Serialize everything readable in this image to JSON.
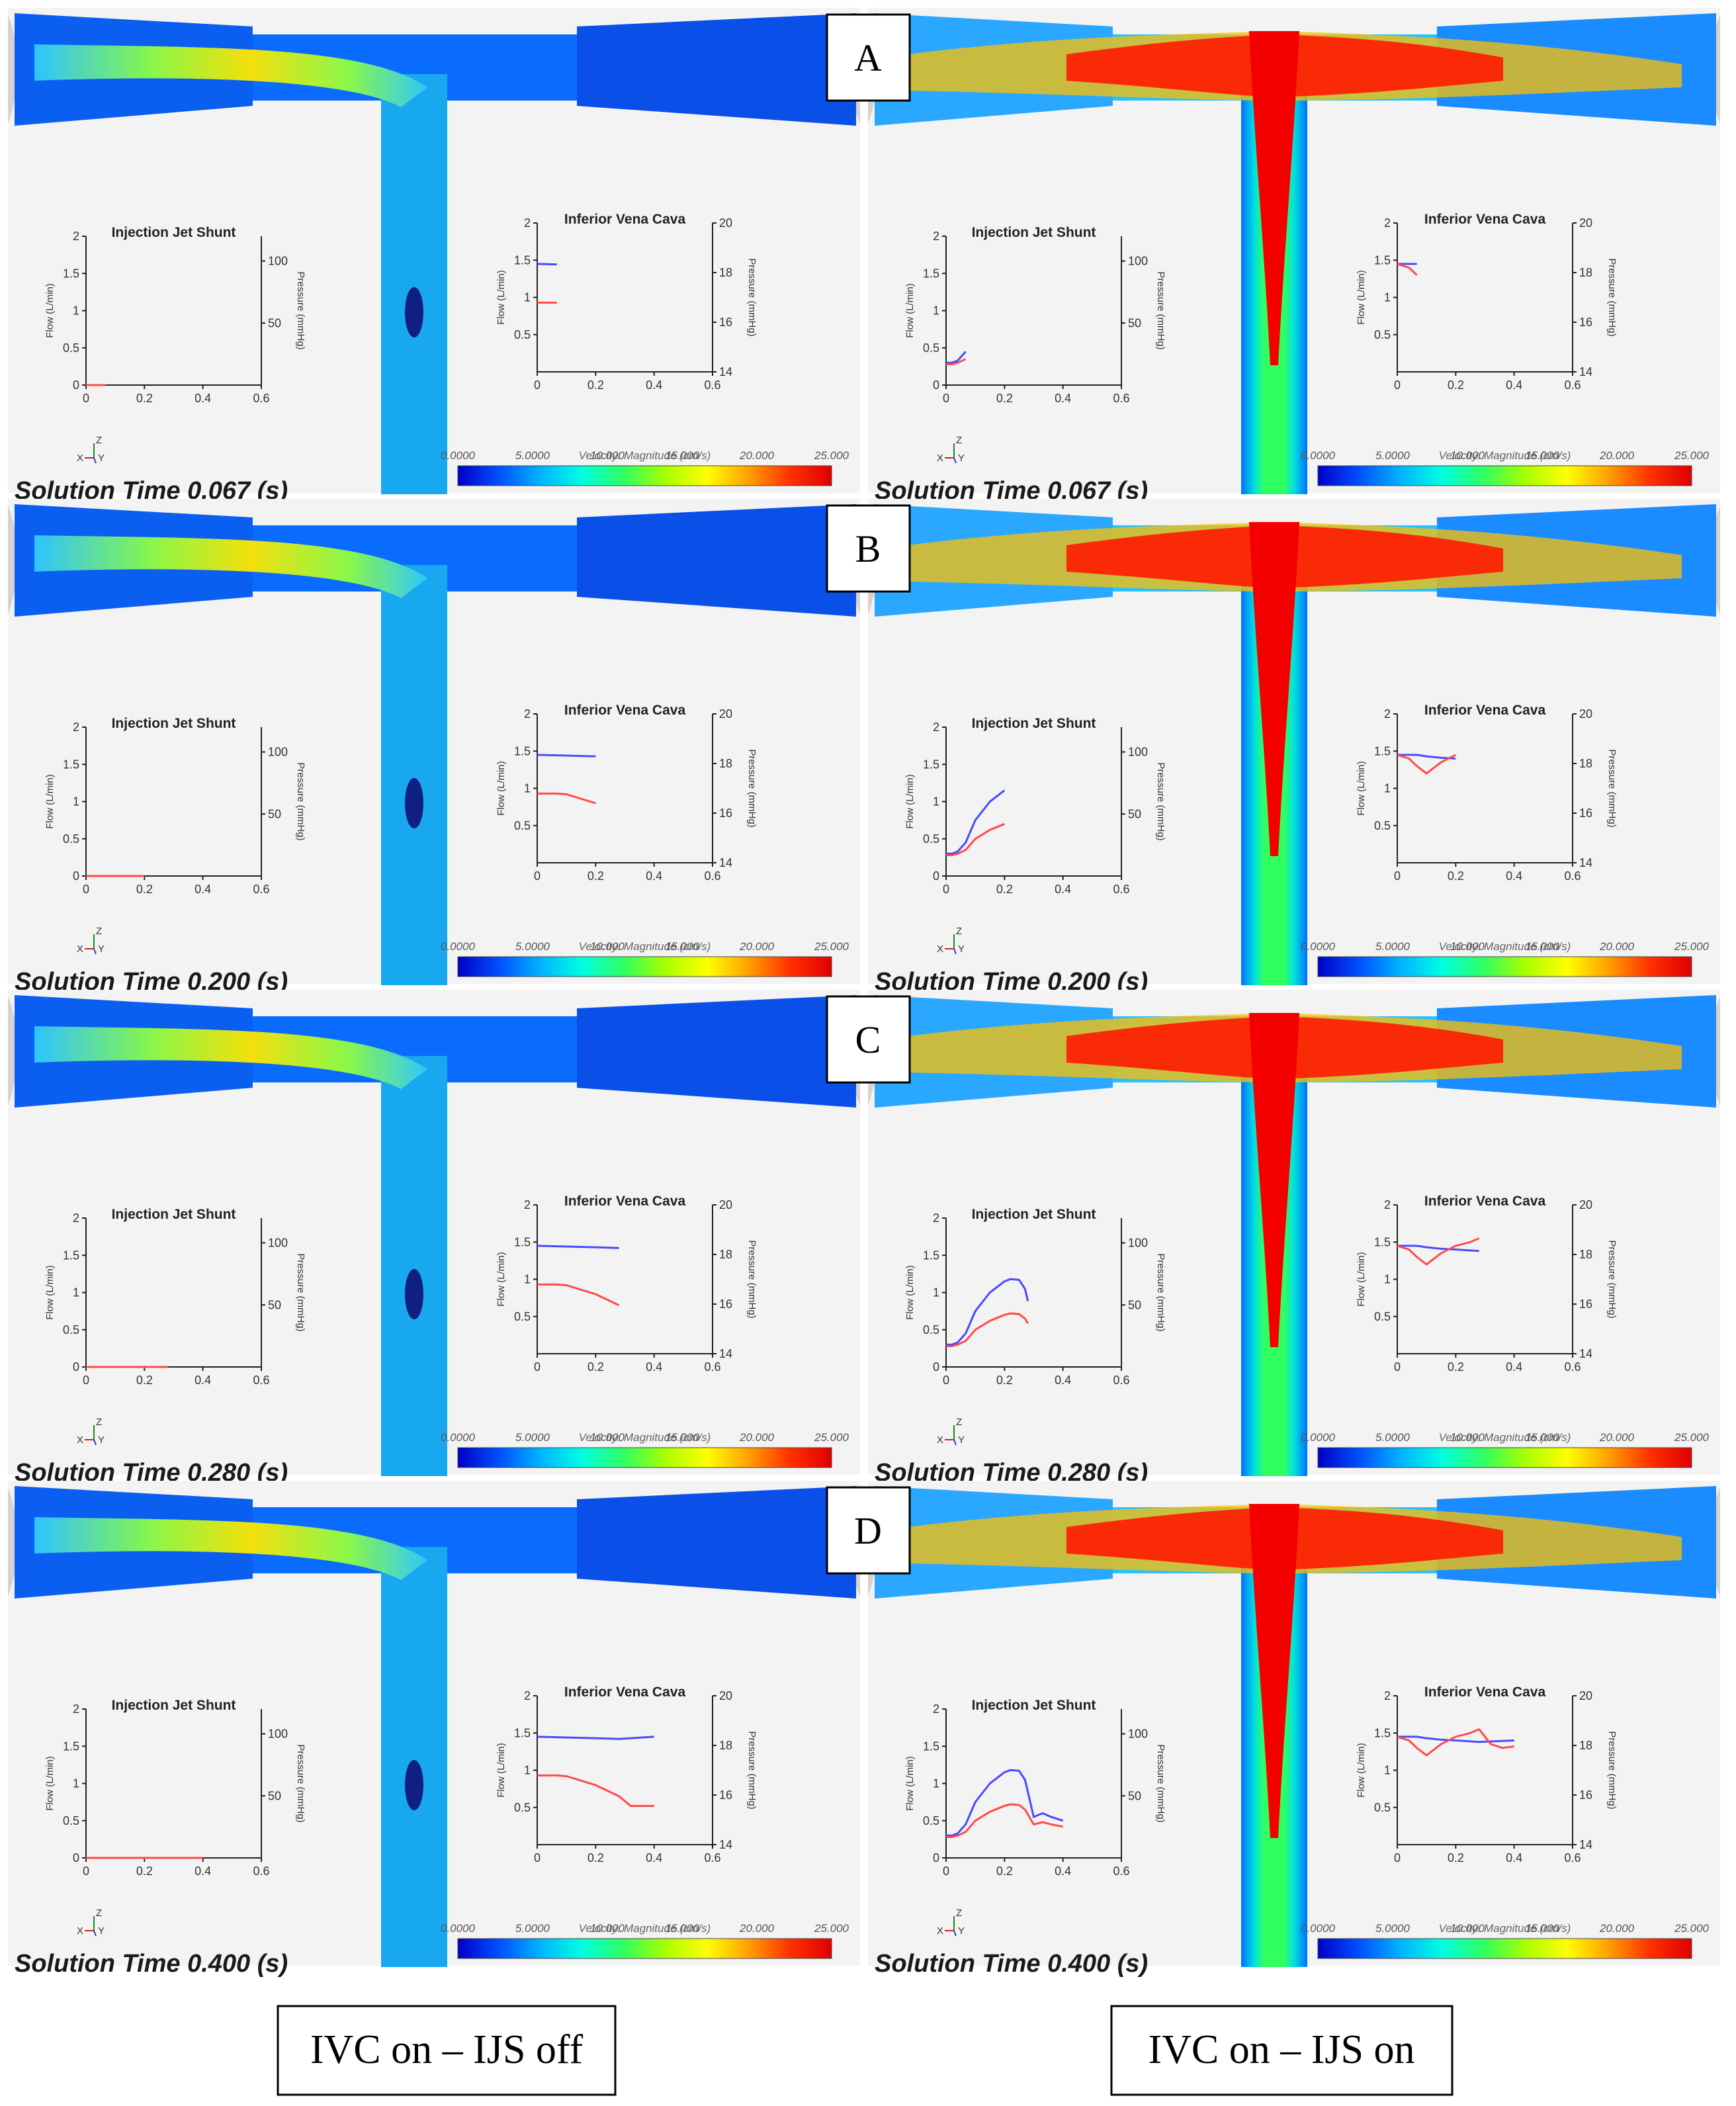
{
  "colors": {
    "flow_line": "#4a4aff",
    "pressure_line": "#ff4a4a",
    "background": "#f3f3f3",
    "velocity_scale": [
      "#0000c8",
      "#0050ff",
      "#00b4ff",
      "#00ffe0",
      "#30ff60",
      "#a8ff00",
      "#ffff00",
      "#ffa000",
      "#ff3000",
      "#e00000"
    ]
  },
  "conditions": {
    "off": "IVC on – IJS off",
    "on": "IVC on – IJS on"
  },
  "labels": {
    "injection_title": "Injection Jet Shunt",
    "ivc_title": "Inferior Vena Cava",
    "flow_axis": "Flow (L/min)",
    "pressure_axis": "Pressure (mmHg)",
    "axis_triad": [
      "X",
      "Y",
      "Z"
    ],
    "velocity_title": "Velocity: Magnitude (cm/s)",
    "velocity_ticks": [
      "0.0000",
      "5.0000",
      "10.000",
      "15.000",
      "20.000",
      "25.000"
    ]
  },
  "panels": [
    {
      "label": "A",
      "time": "Solution Time 0.067 (s)"
    },
    {
      "label": "B",
      "time": "Solution Time 0.200 (s)"
    },
    {
      "label": "C",
      "time": "Solution Time 0.280 (s)"
    },
    {
      "label": "D",
      "time": "Solution Time 0.400 (s)"
    }
  ],
  "chart_data": [
    {
      "chart": "injection-jet-shunt",
      "type": "line",
      "title": "Injection Jet Shunt",
      "xlim": [
        0,
        0.6
      ],
      "xticks": [
        "0",
        "0.2",
        "0.4",
        "0.6"
      ],
      "ylim_left": [
        0,
        2
      ],
      "yticks_left": [
        "0",
        "0.5",
        "1",
        "1.5",
        "2"
      ],
      "ylabel_left": "Flow (L/min)",
      "ylim_right": [
        0,
        120
      ],
      "yticks_right": [
        "50",
        "100"
      ],
      "ylabel_right": "Pressure (mmHg)",
      "series": [
        {
          "name": "Flow",
          "condition": "IJS off",
          "note": "≈0 L/min throughout",
          "x": [
            0,
            0.4
          ],
          "y": [
            0,
            0
          ]
        },
        {
          "name": "Flow",
          "condition": "IJS on",
          "note": "shown up to each panel's solution time",
          "x": [
            0,
            0.02,
            0.04,
            0.067,
            0.1,
            0.15,
            0.2,
            0.22,
            0.25,
            0.27,
            0.3,
            0.33,
            0.36,
            0.4
          ],
          "y": [
            0.3,
            0.3,
            0.33,
            0.45,
            0.75,
            1.0,
            1.15,
            1.18,
            1.17,
            1.05,
            0.55,
            0.6,
            0.55,
            0.5
          ]
        },
        {
          "name": "Pressure",
          "condition": "IJS on",
          "x": [
            0,
            0.02,
            0.04,
            0.067,
            0.1,
            0.15,
            0.2,
            0.22,
            0.25,
            0.27,
            0.3,
            0.33,
            0.36,
            0.4
          ],
          "y": [
            0.28,
            0.28,
            0.3,
            0.35,
            0.5,
            0.62,
            0.7,
            0.72,
            0.71,
            0.65,
            0.45,
            0.48,
            0.45,
            0.42
          ]
        }
      ]
    },
    {
      "chart": "inferior-vena-cava",
      "type": "line",
      "title": "Inferior Vena Cava",
      "xlim": [
        0,
        0.6
      ],
      "xticks": [
        "0",
        "0.2",
        "0.4",
        "0.6"
      ],
      "ylim_left": [
        0,
        2
      ],
      "yticks_left": [
        "0.5",
        "1",
        "1.5",
        "2"
      ],
      "ylabel_left": "Flow (L/min)",
      "ylim_right": [
        14,
        20
      ],
      "yticks_right": [
        "14",
        "16",
        "18",
        "20"
      ],
      "ylabel_right": "Pressure (mmHg)",
      "series": [
        {
          "name": "Flow",
          "condition": "IJS off",
          "x": [
            0,
            0.1,
            0.2,
            0.28,
            0.4
          ],
          "y": [
            1.45,
            1.44,
            1.43,
            1.42,
            1.45
          ]
        },
        {
          "name": "Pressure",
          "condition": "IJS off",
          "x": [
            0,
            0.067,
            0.1,
            0.2,
            0.28,
            0.32,
            0.4
          ],
          "y": [
            0.93,
            0.93,
            0.92,
            0.8,
            0.65,
            0.52,
            0.52
          ]
        },
        {
          "name": "Flow",
          "condition": "IJS on",
          "x": [
            0,
            0.067,
            0.1,
            0.15,
            0.2,
            0.28,
            0.4
          ],
          "y": [
            1.45,
            1.45,
            1.43,
            1.41,
            1.4,
            1.38,
            1.4
          ]
        },
        {
          "name": "Pressure",
          "condition": "IJS on",
          "x": [
            0,
            0.04,
            0.067,
            0.1,
            0.15,
            0.2,
            0.25,
            0.28,
            0.32,
            0.36,
            0.4
          ],
          "y": [
            1.45,
            1.4,
            1.3,
            1.2,
            1.35,
            1.45,
            1.5,
            1.55,
            1.35,
            1.3,
            1.32
          ]
        }
      ]
    }
  ]
}
